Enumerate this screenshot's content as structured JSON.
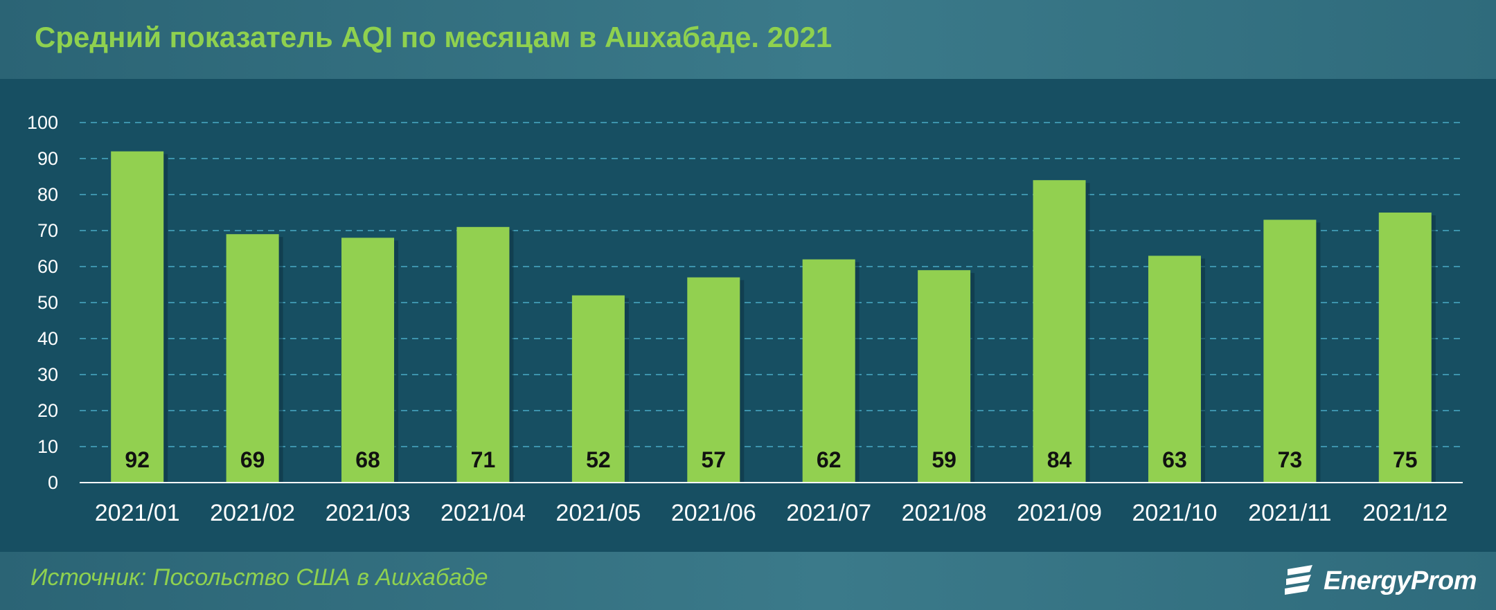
{
  "title": "Средний показатель AQI по месяцам в Ашхабаде. 2021",
  "source": "Источник: Посольство США в Ашхабаде",
  "brand": {
    "name": "EnergyProm",
    "icon": "energyprom-logo-icon"
  },
  "colors": {
    "bar": "#92d050",
    "title": "#8fd14f",
    "plot_bg": "#174f62",
    "grid": "#3d94ad"
  },
  "chart_data": {
    "type": "bar",
    "categories": [
      "2021/01",
      "2021/02",
      "2021/03",
      "2021/04",
      "2021/05",
      "2021/06",
      "2021/07",
      "2021/08",
      "2021/09",
      "2021/10",
      "2021/11",
      "2021/12"
    ],
    "values": [
      92,
      69,
      68,
      71,
      52,
      57,
      62,
      59,
      84,
      63,
      73,
      75
    ],
    "title": "Средний показатель AQI по месяцам в Ашхабаде. 2021",
    "xlabel": "",
    "ylabel": "",
    "ylim": [
      0,
      100
    ],
    "yticks": [
      0,
      10,
      20,
      30,
      40,
      50,
      60,
      70,
      80,
      90,
      100
    ],
    "grid": true,
    "legend": "none",
    "data_labels": "inside-base"
  }
}
